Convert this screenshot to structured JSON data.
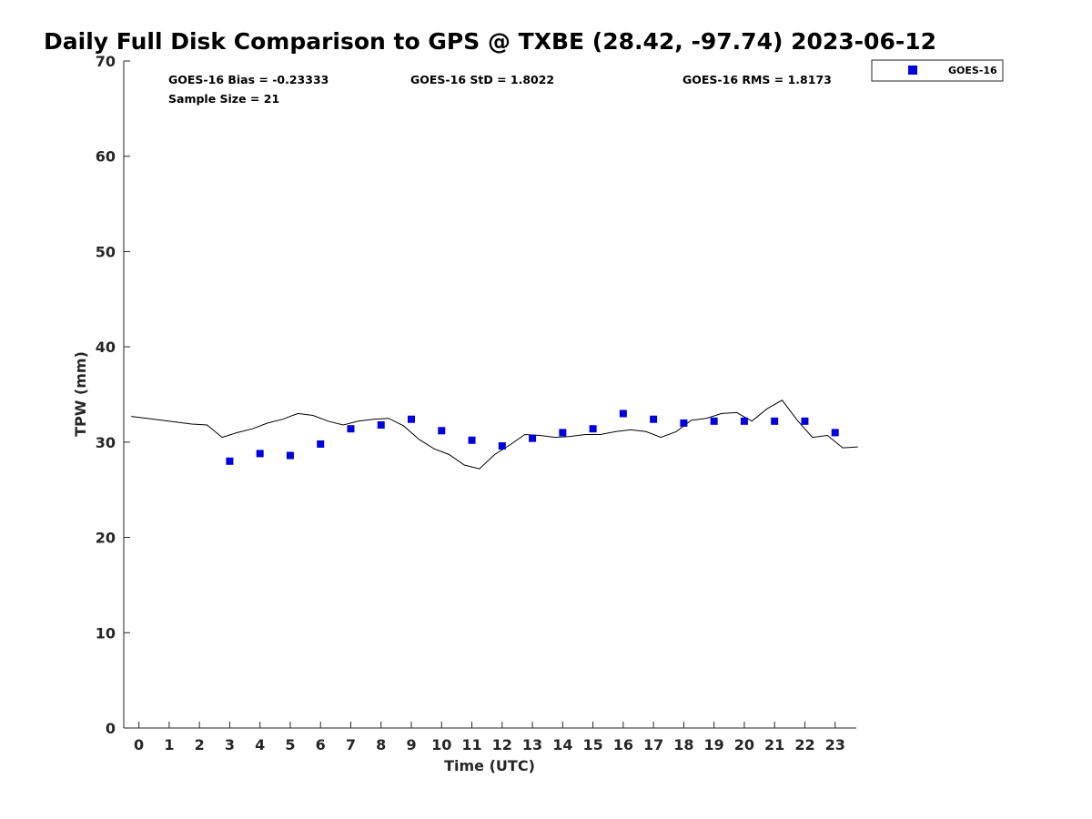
{
  "chart_data": {
    "type": "scatter",
    "title": "Daily Full Disk Comparison to GPS @ TXBE (28.42, -97.74) 2023-06-12",
    "xlabel": "Time (UTC)",
    "ylabel": "TPW (mm)",
    "xlim": [
      -0.5,
      23.7
    ],
    "ylim": [
      0,
      70
    ],
    "x_ticks": [
      "0",
      "1",
      "2",
      "3",
      "4",
      "5",
      "6",
      "7",
      "8",
      "9",
      "10",
      "11",
      "12",
      "13",
      "14",
      "15",
      "16",
      "17",
      "18",
      "19",
      "20",
      "21",
      "22",
      "23"
    ],
    "y_ticks": [
      "0",
      "10",
      "20",
      "30",
      "40",
      "50",
      "60",
      "70"
    ],
    "grid": false,
    "legend": {
      "position": "top-right",
      "entries": [
        "GOES-16"
      ]
    },
    "stats": {
      "bias": "GOES-16 Bias = -0.23333",
      "std": "GOES-16 StD = 1.8022",
      "rms": "GOES-16 RMS = 1.8173",
      "sample": "Sample Size = 21"
    },
    "series": [
      {
        "name": "GOES-16",
        "kind": "scatter",
        "color": "#0000dd",
        "x": [
          3,
          4,
          5,
          6,
          7,
          8,
          9,
          10,
          11,
          12,
          13,
          14,
          15,
          16,
          17,
          18,
          19,
          20,
          21,
          22,
          23
        ],
        "y": [
          28.0,
          28.8,
          28.6,
          29.8,
          31.4,
          31.8,
          32.4,
          31.2,
          30.2,
          29.6,
          30.4,
          31.0,
          31.4,
          33.0,
          32.4,
          32.0,
          32.2,
          32.2,
          32.2,
          32.2,
          31.0
        ]
      },
      {
        "kind": "line",
        "color": "#000000",
        "x": [
          -0.25,
          0.75,
          1.75,
          2.25,
          2.75,
          3.25,
          3.75,
          4.25,
          4.75,
          5.25,
          5.75,
          6.25,
          6.75,
          7.25,
          7.75,
          8.25,
          8.75,
          9.25,
          9.75,
          10.25,
          10.75,
          11.25,
          11.75,
          12.25,
          12.75,
          13.25,
          13.75,
          14.25,
          14.75,
          15.25,
          15.75,
          16.25,
          16.75,
          17.25,
          17.75,
          18.25,
          18.75,
          19.25,
          19.75,
          20.25,
          20.75,
          21.25,
          21.75,
          22.25,
          22.75,
          23.25,
          23.75
        ],
        "y": [
          32.7,
          32.3,
          31.9,
          31.8,
          30.5,
          31.0,
          31.4,
          32.0,
          32.4,
          33.0,
          32.8,
          32.2,
          31.8,
          32.2,
          32.4,
          32.5,
          31.7,
          30.3,
          29.3,
          28.7,
          27.6,
          27.2,
          28.7,
          29.7,
          30.8,
          30.7,
          30.5,
          30.6,
          30.8,
          30.8,
          31.1,
          31.3,
          31.1,
          30.5,
          31.1,
          32.3,
          32.5,
          33.0,
          33.1,
          32.2,
          33.5,
          34.4,
          32.3,
          30.5,
          30.7,
          29.4,
          29.5
        ]
      }
    ]
  }
}
